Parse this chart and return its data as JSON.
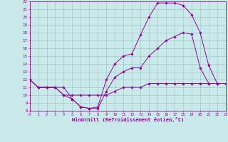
{
  "xlabel": "Windchill (Refroidissement éolien,°C)",
  "bg_color": "#c8eaea",
  "line_color": "#990099",
  "grid_color": "#9ebebe",
  "ylim": [
    8,
    22
  ],
  "xlim": [
    0,
    23
  ],
  "yticks": [
    8,
    9,
    10,
    11,
    12,
    13,
    14,
    15,
    16,
    17,
    18,
    19,
    20,
    21,
    22
  ],
  "xticks": [
    0,
    1,
    2,
    3,
    4,
    5,
    6,
    7,
    8,
    9,
    10,
    11,
    12,
    13,
    14,
    15,
    16,
    17,
    18,
    19,
    20,
    21,
    22,
    23
  ],
  "line1_x": [
    0,
    1,
    2,
    3,
    4,
    5,
    6,
    7,
    8,
    9,
    10,
    11,
    12,
    13,
    14,
    15,
    16,
    17,
    18,
    19,
    20,
    21,
    22,
    23
  ],
  "line1_y": [
    12,
    11,
    11,
    11,
    10,
    10,
    10,
    10,
    10,
    10,
    10.5,
    11,
    11,
    11,
    11.5,
    11.5,
    11.5,
    11.5,
    11.5,
    11.5,
    11.5,
    11.5,
    11.5,
    11.5
  ],
  "line2_x": [
    0,
    1,
    2,
    3,
    4,
    5,
    6,
    7,
    8,
    9,
    10,
    11,
    12,
    13,
    14,
    15,
    16,
    17,
    18,
    19,
    20,
    21,
    22,
    23
  ],
  "line2_y": [
    12,
    11,
    11,
    11,
    10,
    9.5,
    8.5,
    8.3,
    8.3,
    10.5,
    12.3,
    13,
    13.5,
    13.5,
    15,
    16,
    17,
    17.5,
    18,
    17.8,
    13.5,
    11.5,
    11.5,
    11.5
  ],
  "line3_x": [
    0,
    1,
    2,
    3,
    4,
    5,
    6,
    7,
    8,
    9,
    10,
    11,
    12,
    13,
    14,
    15,
    16,
    17,
    18,
    19,
    20,
    21,
    22
  ],
  "line3_y": [
    12,
    11,
    11,
    11,
    11,
    9.5,
    8.5,
    8.3,
    8.5,
    12,
    14,
    15,
    15.3,
    17.7,
    20,
    21.8,
    21.8,
    21.8,
    21.5,
    20.3,
    18,
    13.8,
    11.5
  ]
}
